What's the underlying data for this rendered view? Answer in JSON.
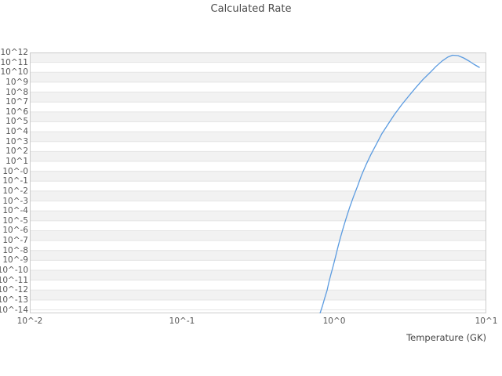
{
  "chart_data": {
    "type": "line",
    "title": "Calculated Rate",
    "xlabel": "Temperature (GK)",
    "ylabel": "",
    "x_scale": "log",
    "y_scale": "log",
    "grid": "horizontal-gridlines-with-alternating-bands",
    "legend": "none",
    "xlim_log10": [
      -2,
      1
    ],
    "ylim_log10": [
      -14.35,
      12
    ],
    "x_ticks": [
      "10^-2",
      "10^-1",
      "10^0",
      "10^1"
    ],
    "x_ticks_log10": [
      -2,
      -1,
      0,
      1
    ],
    "y_ticks": [
      "10^12",
      "10^11",
      "10^10",
      "10^9",
      "10^8",
      "10^7",
      "10^6",
      "10^5",
      "10^4",
      "10^3",
      "10^2",
      "10^1",
      "10^-0",
      "10^-1",
      "10^-2",
      "10^-3",
      "10^-4",
      "10^-5",
      "10^-6",
      "10^-7",
      "10^-8",
      "10^-9",
      "10^-10",
      "10^-11",
      "10^-12",
      "10^-13",
      "10^-14"
    ],
    "y_ticks_log10": [
      12,
      11,
      10,
      9,
      8,
      7,
      6,
      5,
      4,
      3,
      2,
      1,
      0,
      -1,
      -2,
      -3,
      -4,
      -5,
      -6,
      -7,
      -8,
      -9,
      -10,
      -11,
      -12,
      -13,
      -14
    ],
    "series": [
      {
        "name": "calculated-rate",
        "color": "#5b9be0",
        "points_log10": [
          [
            -0.093,
            -14.35
          ],
          [
            -0.077,
            -13.6
          ],
          [
            -0.062,
            -12.8
          ],
          [
            -0.046,
            -12.0
          ],
          [
            -0.036,
            -11.3
          ],
          [
            -0.021,
            -10.4
          ],
          [
            -0.005,
            -9.5
          ],
          [
            0.01,
            -8.6
          ],
          [
            0.026,
            -7.6
          ],
          [
            0.041,
            -6.7
          ],
          [
            0.062,
            -5.6
          ],
          [
            0.082,
            -4.6
          ],
          [
            0.103,
            -3.6
          ],
          [
            0.129,
            -2.5
          ],
          [
            0.155,
            -1.45
          ],
          [
            0.18,
            -0.4
          ],
          [
            0.211,
            0.7
          ],
          [
            0.242,
            1.7
          ],
          [
            0.278,
            2.75
          ],
          [
            0.314,
            3.8
          ],
          [
            0.356,
            4.8
          ],
          [
            0.397,
            5.75
          ],
          [
            0.443,
            6.7
          ],
          [
            0.49,
            7.6
          ],
          [
            0.536,
            8.45
          ],
          [
            0.582,
            9.25
          ],
          [
            0.629,
            9.95
          ],
          [
            0.67,
            10.6
          ],
          [
            0.711,
            11.15
          ],
          [
            0.747,
            11.53
          ],
          [
            0.778,
            11.72
          ],
          [
            0.814,
            11.68
          ],
          [
            0.851,
            11.45
          ],
          [
            0.887,
            11.13
          ],
          [
            0.918,
            10.81
          ],
          [
            0.954,
            10.5
          ]
        ]
      }
    ],
    "colors": {
      "line": "#5b9be0",
      "band_fill": "#f2f2f2",
      "gridline": "#e4e4e4",
      "plot_border": "#cccccc",
      "title_text": "#4a4a4a",
      "tick_text": "#555555",
      "axis_label_text": "#444444",
      "background": "#ffffff"
    }
  }
}
